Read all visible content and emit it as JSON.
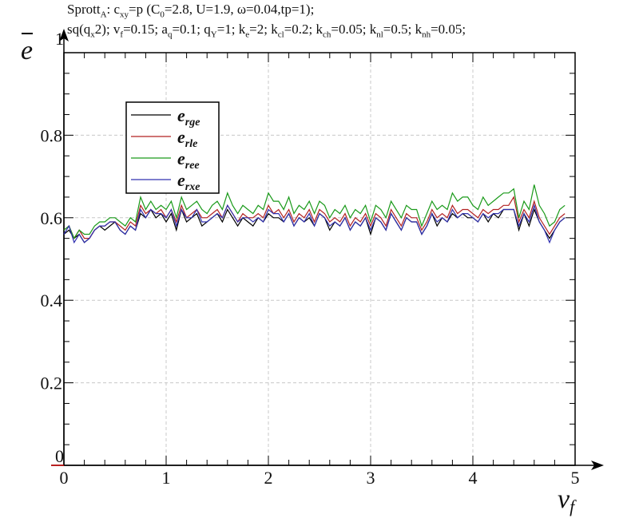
{
  "header": {
    "line1_parts": [
      "Sprott",
      "A",
      ": c",
      "xy",
      "=p (C",
      "0",
      "=2.8, U=1.9, ω=0.04,tp=1);"
    ],
    "line2_parts": [
      "sq(q",
      "x",
      "2); v",
      "f",
      "=0.15; a",
      "q",
      "=0.1; q",
      "Y",
      "=1; k",
      "e",
      "=2; k",
      "cl",
      "=0.2; k",
      "ch",
      "=0.05; k",
      "nl",
      "=0.5; k",
      "nh",
      "=0.05;"
    ]
  },
  "chart_data": {
    "type": "line",
    "xlabel": "v",
    "xlabel_sub": "f",
    "ylabel": "e",
    "xlim": [
      0,
      5
    ],
    "ylim": [
      0,
      1
    ],
    "xticks": [
      "0",
      "1",
      "2",
      "3",
      "4",
      "5"
    ],
    "yticks": [
      "0",
      "0.2",
      "0.4",
      "0.6",
      "0.8",
      "1"
    ],
    "grid": true,
    "legend_position": "top-left",
    "x": [
      0,
      0.05,
      0.1,
      0.15,
      0.2,
      0.25,
      0.3,
      0.35,
      0.4,
      0.45,
      0.5,
      0.55,
      0.6,
      0.65,
      0.7,
      0.75,
      0.8,
      0.85,
      0.9,
      0.95,
      1,
      1.05,
      1.1,
      1.15,
      1.2,
      1.25,
      1.3,
      1.35,
      1.4,
      1.45,
      1.5,
      1.55,
      1.6,
      1.65,
      1.7,
      1.75,
      1.8,
      1.85,
      1.9,
      1.95,
      2,
      2.05,
      2.1,
      2.15,
      2.2,
      2.25,
      2.3,
      2.35,
      2.4,
      2.45,
      2.5,
      2.55,
      2.6,
      2.65,
      2.7,
      2.75,
      2.8,
      2.85,
      2.9,
      2.95,
      3,
      3.05,
      3.1,
      3.15,
      3.2,
      3.25,
      3.3,
      3.35,
      3.4,
      3.45,
      3.5,
      3.55,
      3.6,
      3.65,
      3.7,
      3.75,
      3.8,
      3.85,
      3.9,
      3.95,
      4,
      4.05,
      4.1,
      4.15,
      4.2,
      4.25,
      4.3,
      4.35,
      4.4,
      4.45,
      4.5,
      4.55,
      4.6,
      4.65,
      4.7,
      4.75,
      4.8,
      4.85,
      4.9
    ],
    "series": [
      {
        "name": "rge",
        "color": "#000000",
        "values": [
          0.56,
          0.57,
          0.55,
          0.56,
          0.54,
          0.55,
          0.57,
          0.58,
          0.57,
          0.58,
          0.59,
          0.57,
          0.56,
          0.58,
          0.57,
          0.61,
          0.6,
          0.62,
          0.6,
          0.61,
          0.59,
          0.61,
          0.57,
          0.62,
          0.59,
          0.6,
          0.61,
          0.58,
          0.59,
          0.6,
          0.61,
          0.59,
          0.62,
          0.6,
          0.58,
          0.6,
          0.59,
          0.58,
          0.6,
          0.59,
          0.61,
          0.6,
          0.6,
          0.59,
          0.61,
          0.58,
          0.6,
          0.59,
          0.6,
          0.58,
          0.61,
          0.6,
          0.57,
          0.59,
          0.58,
          0.6,
          0.57,
          0.59,
          0.58,
          0.6,
          0.56,
          0.6,
          0.59,
          0.57,
          0.61,
          0.59,
          0.57,
          0.6,
          0.59,
          0.59,
          0.56,
          0.58,
          0.61,
          0.58,
          0.6,
          0.59,
          0.61,
          0.6,
          0.61,
          0.6,
          0.6,
          0.59,
          0.61,
          0.59,
          0.61,
          0.6,
          0.62,
          0.62,
          0.62,
          0.57,
          0.61,
          0.58,
          0.62,
          0.59,
          0.57,
          0.55,
          0.57,
          0.59,
          0.6
        ]
      },
      {
        "name": "rle",
        "color": "#b22222",
        "values": [
          0.57,
          0.58,
          0.55,
          0.57,
          0.55,
          0.55,
          0.57,
          0.58,
          0.58,
          0.59,
          0.59,
          0.58,
          0.57,
          0.59,
          0.58,
          0.63,
          0.61,
          0.62,
          0.61,
          0.62,
          0.6,
          0.62,
          0.59,
          0.63,
          0.6,
          0.61,
          0.62,
          0.6,
          0.6,
          0.61,
          0.62,
          0.6,
          0.63,
          0.61,
          0.59,
          0.61,
          0.6,
          0.6,
          0.61,
          0.6,
          0.63,
          0.61,
          0.62,
          0.6,
          0.62,
          0.59,
          0.61,
          0.6,
          0.62,
          0.59,
          0.62,
          0.61,
          0.59,
          0.6,
          0.59,
          0.61,
          0.58,
          0.6,
          0.59,
          0.61,
          0.58,
          0.61,
          0.6,
          0.58,
          0.62,
          0.6,
          0.58,
          0.61,
          0.6,
          0.6,
          0.57,
          0.59,
          0.62,
          0.6,
          0.61,
          0.6,
          0.63,
          0.61,
          0.62,
          0.62,
          0.61,
          0.6,
          0.62,
          0.61,
          0.62,
          0.62,
          0.63,
          0.63,
          0.65,
          0.59,
          0.62,
          0.6,
          0.64,
          0.6,
          0.58,
          0.56,
          0.58,
          0.6,
          0.61
        ]
      },
      {
        "name": "ree",
        "color": "#1a9a1a",
        "values": [
          0.57,
          0.58,
          0.55,
          0.57,
          0.56,
          0.56,
          0.58,
          0.59,
          0.59,
          0.6,
          0.6,
          0.59,
          0.58,
          0.6,
          0.59,
          0.65,
          0.62,
          0.64,
          0.62,
          0.63,
          0.62,
          0.64,
          0.6,
          0.65,
          0.62,
          0.63,
          0.64,
          0.62,
          0.61,
          0.63,
          0.64,
          0.62,
          0.66,
          0.63,
          0.61,
          0.63,
          0.62,
          0.61,
          0.63,
          0.62,
          0.66,
          0.64,
          0.64,
          0.62,
          0.65,
          0.61,
          0.63,
          0.62,
          0.64,
          0.61,
          0.64,
          0.63,
          0.6,
          0.62,
          0.61,
          0.63,
          0.6,
          0.62,
          0.61,
          0.63,
          0.59,
          0.63,
          0.62,
          0.6,
          0.64,
          0.62,
          0.6,
          0.63,
          0.62,
          0.62,
          0.58,
          0.61,
          0.64,
          0.62,
          0.63,
          0.62,
          0.66,
          0.64,
          0.65,
          0.65,
          0.63,
          0.62,
          0.65,
          0.63,
          0.64,
          0.65,
          0.66,
          0.66,
          0.67,
          0.6,
          0.64,
          0.62,
          0.68,
          0.63,
          0.61,
          0.58,
          0.59,
          0.62,
          0.63
        ]
      },
      {
        "name": "rxe",
        "color": "#3030b0",
        "values": [
          0.56,
          0.58,
          0.54,
          0.56,
          0.54,
          0.55,
          0.57,
          0.58,
          0.58,
          0.59,
          0.59,
          0.57,
          0.56,
          0.58,
          0.57,
          0.62,
          0.6,
          0.62,
          0.61,
          0.61,
          0.6,
          0.62,
          0.58,
          0.62,
          0.6,
          0.6,
          0.62,
          0.59,
          0.59,
          0.6,
          0.61,
          0.6,
          0.63,
          0.61,
          0.59,
          0.6,
          0.6,
          0.59,
          0.6,
          0.59,
          0.62,
          0.61,
          0.61,
          0.59,
          0.61,
          0.58,
          0.6,
          0.59,
          0.61,
          0.58,
          0.61,
          0.6,
          0.58,
          0.59,
          0.58,
          0.6,
          0.57,
          0.59,
          0.58,
          0.6,
          0.57,
          0.6,
          0.59,
          0.57,
          0.61,
          0.59,
          0.57,
          0.6,
          0.59,
          0.59,
          0.56,
          0.58,
          0.61,
          0.59,
          0.6,
          0.59,
          0.62,
          0.6,
          0.61,
          0.61,
          0.6,
          0.59,
          0.61,
          0.6,
          0.61,
          0.61,
          0.62,
          0.62,
          0.62,
          0.58,
          0.61,
          0.59,
          0.63,
          0.59,
          0.57,
          0.54,
          0.57,
          0.59,
          0.6
        ]
      }
    ]
  }
}
